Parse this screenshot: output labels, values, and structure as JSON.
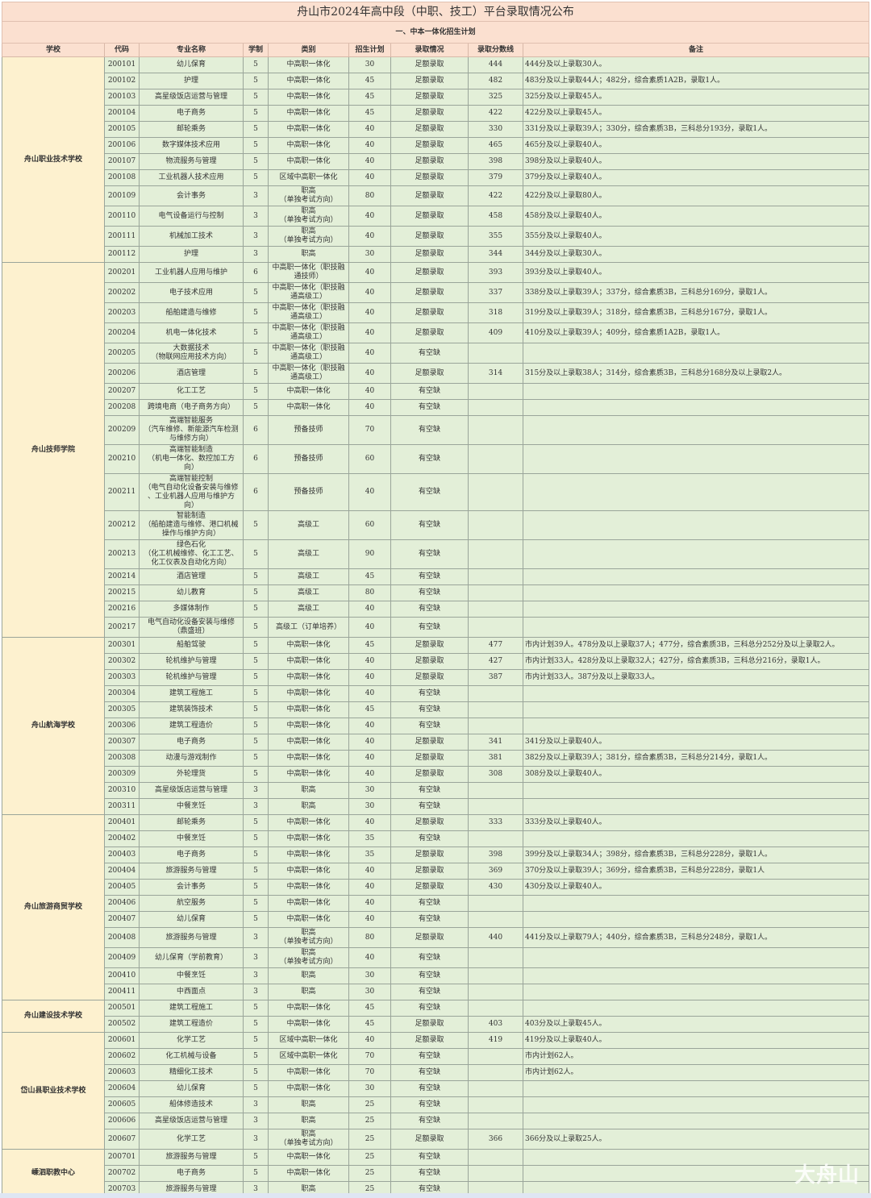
{
  "title": "舟山市2024年高中段（中职、技工）平台录取情况公布",
  "subtitle": "一、中本一体化招生计划",
  "headers": [
    "学校",
    "代码",
    "专业名称",
    "学制",
    "类别",
    "招生计划",
    "录取情况",
    "录取分数线",
    "备注"
  ],
  "colors": {
    "header_bg": "#fbe0d0",
    "school_bg": "#fdf1cf",
    "cell_bg": "#e3efd8"
  },
  "watermark": "大舟山",
  "schools": [
    {
      "name": "舟山职业技术学校",
      "rows": [
        [
          "200101",
          "幼儿保育",
          "5",
          "中高职一体化",
          "30",
          "足额录取",
          "444",
          "444分及以上录取30人。"
        ],
        [
          "200102",
          "护理",
          "5",
          "中高职一体化",
          "45",
          "足额录取",
          "482",
          "483分及以上录取44人；482分，综合素质1A2B，录取1人。"
        ],
        [
          "200103",
          "高星级饭店运营与管理",
          "5",
          "中高职一体化",
          "45",
          "足额录取",
          "325",
          "325分及以上录取45人。"
        ],
        [
          "200104",
          "电子商务",
          "5",
          "中高职一体化",
          "45",
          "足额录取",
          "422",
          "422分及以上录取45人。"
        ],
        [
          "200105",
          "邮轮乘务",
          "5",
          "中高职一体化",
          "40",
          "足额录取",
          "330",
          "331分及以上录取39人；330分，综合素质3B，三科总分193分，录取1人。"
        ],
        [
          "200106",
          "数字媒体技术应用",
          "5",
          "中高职一体化",
          "40",
          "足额录取",
          "465",
          "465分及以上录取40人。"
        ],
        [
          "200107",
          "物流服务与管理",
          "5",
          "中高职一体化",
          "40",
          "足额录取",
          "398",
          "398分及以上录取40人。"
        ],
        [
          "200108",
          "工业机器人技术应用",
          "5",
          "区域中高职一体化",
          "40",
          "足额录取",
          "379",
          "379分及以上录取40人。"
        ],
        [
          "200109",
          "会计事务",
          "3",
          "职高\n（单独考试方向）",
          "80",
          "足额录取",
          "422",
          "422分及以上录取80人。"
        ],
        [
          "200110",
          "电气设备运行与控制",
          "3",
          "职高\n（单独考试方向）",
          "40",
          "足额录取",
          "458",
          "458分及以上录取40人。"
        ],
        [
          "200111",
          "机械加工技术",
          "3",
          "职高\n（单独考试方向）",
          "40",
          "足额录取",
          "355",
          "355分及以上录取40人。"
        ],
        [
          "200112",
          "护理",
          "3",
          "职高",
          "30",
          "足额录取",
          "344",
          "344分及以上录取30人。"
        ]
      ]
    },
    {
      "name": "舟山技师学院",
      "rows": [
        [
          "200201",
          "工业机器人应用与维护",
          "6",
          "中高职一体化（职技融\n通技师）",
          "40",
          "足额录取",
          "393",
          "393分及以上录取40人。"
        ],
        [
          "200202",
          "电子技术应用",
          "5",
          "中高职一体化（职技融\n通高级工）",
          "40",
          "足额录取",
          "337",
          "338分及以上录取39人；337分，综合素质3B，三科总分169分，录取1人。"
        ],
        [
          "200203",
          "船舶建造与维修",
          "5",
          "中高职一体化（职技融\n通高级工）",
          "40",
          "足额录取",
          "318",
          "319分及以上录取39人；318分，综合素质3B，三科总分167分，录取1人。"
        ],
        [
          "200204",
          "机电一体化技术",
          "5",
          "中高职一体化（职技融\n通高级工）",
          "40",
          "足额录取",
          "409",
          "410分及以上录取39人；409分，综合素质1A2B，录取1人。"
        ],
        [
          "200205",
          "大数据技术\n（物联网应用技术方向）",
          "5",
          "中高职一体化（职技融\n通高级工）",
          "40",
          "有空缺",
          "",
          ""
        ],
        [
          "200206",
          "酒店管理",
          "5",
          "中高职一体化（职技融\n通高级工）",
          "40",
          "足额录取",
          "314",
          "315分及以上录取38人；314分，综合素质3B，三科总分168分及以上录取2人。"
        ],
        [
          "200207",
          "化工工艺",
          "5",
          "中高职一体化",
          "40",
          "有空缺",
          "",
          ""
        ],
        [
          "200208",
          "跨境电商（电子商务方向）",
          "5",
          "中高职一体化",
          "40",
          "有空缺",
          "",
          ""
        ],
        [
          "200209",
          "高端智能服务\n（汽车维修、新能源汽车检测\n与维修方向）",
          "6",
          "预备技师",
          "70",
          "有空缺",
          "",
          ""
        ],
        [
          "200210",
          "高端智能制造\n（机电一体化、数控加工方\n向）",
          "6",
          "预备技师",
          "60",
          "有空缺",
          "",
          ""
        ],
        [
          "200211",
          "高端智能控制\n（电气自动化设备安装与维修\n、工业机器人应用与维护方\n向）",
          "6",
          "预备技师",
          "40",
          "有空缺",
          "",
          ""
        ],
        [
          "200212",
          "智能制造\n（船舶建造与维修、港口机械\n操作与维护方向）",
          "5",
          "高级工",
          "60",
          "有空缺",
          "",
          ""
        ],
        [
          "200213",
          "绿色石化\n（化工机械维修、化工工艺、\n化工仪表及自动化方向）",
          "5",
          "高级工",
          "90",
          "有空缺",
          "",
          ""
        ],
        [
          "200214",
          "酒店管理",
          "5",
          "高级工",
          "45",
          "有空缺",
          "",
          ""
        ],
        [
          "200215",
          "幼儿教育",
          "5",
          "高级工",
          "80",
          "有空缺",
          "",
          ""
        ],
        [
          "200216",
          "多媒体制作",
          "5",
          "高级工",
          "40",
          "有空缺",
          "",
          ""
        ],
        [
          "200217",
          "电气自动化设备安装与维修\n（鼎盛班）",
          "5",
          "高级工（订单培养）",
          "40",
          "有空缺",
          "",
          ""
        ]
      ]
    },
    {
      "name": "舟山航海学校",
      "rows": [
        [
          "200301",
          "船舶驾驶",
          "5",
          "中高职一体化",
          "45",
          "足额录取",
          "477",
          "市内计划39人。478分及以上录取37人；477分，综合素质3B，三科总分252分及以上录取2人。"
        ],
        [
          "200302",
          "轮机维护与管理",
          "5",
          "中高职一体化",
          "40",
          "足额录取",
          "427",
          "市内计划33人。428分及以上录取32人；427分，综合素质3B，三科总分216分，录取1人。"
        ],
        [
          "200303",
          "轮机维护与管理",
          "5",
          "中高职一体化",
          "40",
          "足额录取",
          "387",
          "市内计划33人。387分及以上录取33人。"
        ],
        [
          "200304",
          "建筑工程施工",
          "5",
          "中高职一体化",
          "40",
          "有空缺",
          "",
          ""
        ],
        [
          "200305",
          "建筑装饰技术",
          "5",
          "中高职一体化",
          "45",
          "有空缺",
          "",
          ""
        ],
        [
          "200306",
          "建筑工程造价",
          "5",
          "中高职一体化",
          "40",
          "有空缺",
          "",
          ""
        ],
        [
          "200307",
          "电子商务",
          "5",
          "中高职一体化",
          "40",
          "足额录取",
          "341",
          "341分及以上录取40人。"
        ],
        [
          "200308",
          "动漫与游戏制作",
          "5",
          "中高职一体化",
          "40",
          "足额录取",
          "381",
          "382分及以上录取39人；381分，综合素质3B，三科总分214分，录取1人。"
        ],
        [
          "200309",
          "外轮理货",
          "5",
          "中高职一体化",
          "40",
          "足额录取",
          "308",
          "308分及以上录取40人。"
        ],
        [
          "200310",
          "高星级饭店运营与管理",
          "3",
          "职高",
          "30",
          "有空缺",
          "",
          ""
        ],
        [
          "200311",
          "中餐烹饪",
          "3",
          "职高",
          "30",
          "有空缺",
          "",
          ""
        ]
      ]
    },
    {
      "name": "舟山旅游商贸学校",
      "rows": [
        [
          "200401",
          "邮轮乘务",
          "5",
          "中高职一体化",
          "40",
          "足额录取",
          "333",
          "333分及以上录取40人。"
        ],
        [
          "200402",
          "中餐烹饪",
          "5",
          "中高职一体化",
          "35",
          "有空缺",
          "",
          ""
        ],
        [
          "200403",
          "电子商务",
          "5",
          "中高职一体化",
          "35",
          "足额录取",
          "398",
          "399分及以上录取34人；398分，综合素质3B，三科总分228分，录取1人。"
        ],
        [
          "200404",
          "旅游服务与管理",
          "5",
          "中高职一体化",
          "40",
          "足额录取",
          "369",
          "370分及以上录取39人；369分，综合素质3B，三科总分228分，录取1人"
        ],
        [
          "200405",
          "会计事务",
          "5",
          "中高职一体化",
          "40",
          "足额录取",
          "430",
          "430分及以上录取40人。"
        ],
        [
          "200406",
          "航空服务",
          "5",
          "中高职一体化",
          "40",
          "有空缺",
          "",
          ""
        ],
        [
          "200407",
          "幼儿保育",
          "5",
          "中高职一体化",
          "40",
          "有空缺",
          "",
          ""
        ],
        [
          "200408",
          "旅游服务与管理",
          "3",
          "职高\n（单独考试方向）",
          "80",
          "足额录取",
          "440",
          "441分及以上录取79人；440分，综合素质3B，三科总分248分，录取1人。"
        ],
        [
          "200409",
          "幼儿保育（学前教育）",
          "3",
          "职高\n（单独考试方向）",
          "40",
          "有空缺",
          "",
          ""
        ],
        [
          "200410",
          "中餐烹饪",
          "3",
          "职高",
          "30",
          "有空缺",
          "",
          ""
        ],
        [
          "200411",
          "中西面点",
          "3",
          "职高",
          "30",
          "有空缺",
          "",
          ""
        ]
      ]
    },
    {
      "name": "舟山建设技术学校",
      "rows": [
        [
          "200501",
          "建筑工程施工",
          "5",
          "中高职一体化",
          "45",
          "有空缺",
          "",
          ""
        ],
        [
          "200502",
          "建筑工程造价",
          "5",
          "中高职一体化",
          "45",
          "足额录取",
          "403",
          "403分及以上录取45人。"
        ]
      ]
    },
    {
      "name": "岱山县职业技术学校",
      "rows": [
        [
          "200601",
          "化学工艺",
          "5",
          "区域中高职一体化",
          "40",
          "足额录取",
          "419",
          "419分及以上录取40人。"
        ],
        [
          "200602",
          "化工机械与设备",
          "5",
          "区域中高职一体化",
          "70",
          "有空缺",
          "",
          "市内计划62人。"
        ],
        [
          "200603",
          "精细化工技术",
          "5",
          "中高职一体化",
          "70",
          "有空缺",
          "",
          "市内计划62人。"
        ],
        [
          "200604",
          "幼儿保育",
          "5",
          "中高职一体化",
          "30",
          "有空缺",
          "",
          ""
        ],
        [
          "200605",
          "船体修造技术",
          "3",
          "职高",
          "25",
          "有空缺",
          "",
          ""
        ],
        [
          "200606",
          "高星级饭店运营与管理",
          "3",
          "职高",
          "25",
          "有空缺",
          "",
          ""
        ],
        [
          "200607",
          "化学工艺",
          "3",
          "职高\n（单独考试方向）",
          "25",
          "足额录取",
          "366",
          "366分及以上录取25人。"
        ]
      ]
    },
    {
      "name": "嵊泗职教中心",
      "rows": [
        [
          "200701",
          "旅游服务与管理",
          "5",
          "中高职一体化",
          "25",
          "有空缺",
          "",
          ""
        ],
        [
          "200702",
          "电子商务",
          "5",
          "中高职一体化",
          "25",
          "有空缺",
          "",
          ""
        ],
        [
          "200703",
          "旅游服务与管理",
          "3",
          "职高",
          "25",
          "有空缺",
          "",
          ""
        ]
      ]
    }
  ]
}
